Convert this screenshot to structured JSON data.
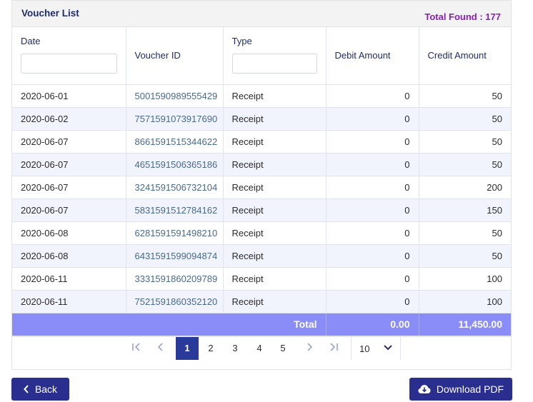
{
  "header": {
    "title": "Voucher List",
    "total_found": "Total Found : 177"
  },
  "columns": {
    "date": "Date",
    "voucher_id": "Voucher ID",
    "type": "Type",
    "debit": "Debit Amount",
    "credit": "Credit Amount"
  },
  "rows": [
    {
      "date": "2020-06-01",
      "voucher_id": "5001590989555429",
      "type": "Receipt",
      "debit": "0",
      "credit": "50"
    },
    {
      "date": "2020-06-02",
      "voucher_id": "7571591073917690",
      "type": "Receipt",
      "debit": "0",
      "credit": "50"
    },
    {
      "date": "2020-06-07",
      "voucher_id": "8661591515344622",
      "type": "Receipt",
      "debit": "0",
      "credit": "50"
    },
    {
      "date": "2020-06-07",
      "voucher_id": "4651591506365186",
      "type": "Receipt",
      "debit": "0",
      "credit": "50"
    },
    {
      "date": "2020-06-07",
      "voucher_id": "3241591506732104",
      "type": "Receipt",
      "debit": "0",
      "credit": "200"
    },
    {
      "date": "2020-06-07",
      "voucher_id": "5831591512784162",
      "type": "Receipt",
      "debit": "0",
      "credit": "150"
    },
    {
      "date": "2020-06-08",
      "voucher_id": "6281591591498210",
      "type": "Receipt",
      "debit": "0",
      "credit": "50"
    },
    {
      "date": "2020-06-08",
      "voucher_id": "6431591599094874",
      "type": "Receipt",
      "debit": "0",
      "credit": "50"
    },
    {
      "date": "2020-06-11",
      "voucher_id": "3331591860209789",
      "type": "Receipt",
      "debit": "0",
      "credit": "100"
    },
    {
      "date": "2020-06-11",
      "voucher_id": "7521591860352120",
      "type": "Receipt",
      "debit": "0",
      "credit": "100"
    }
  ],
  "totals": {
    "label": "Total",
    "debit": "0.00",
    "credit": "11,450.00"
  },
  "pagination": {
    "pages": [
      "1",
      "2",
      "3",
      "4",
      "5"
    ],
    "active_page": "1",
    "page_size": "10",
    "icons": [
      "first-page-icon",
      "prev-page-icon",
      "next-page-icon",
      "last-page-icon",
      "chevron-down-icon"
    ]
  },
  "actions": {
    "back_label": "Back",
    "download_label": "Download PDF"
  },
  "colors": {
    "title": "#1f2c6b",
    "total_found": "#8a1fb5",
    "total_row": "#8a8cf8",
    "primary_button": "#2a2f8f",
    "active_page": "#2a3a9a"
  }
}
